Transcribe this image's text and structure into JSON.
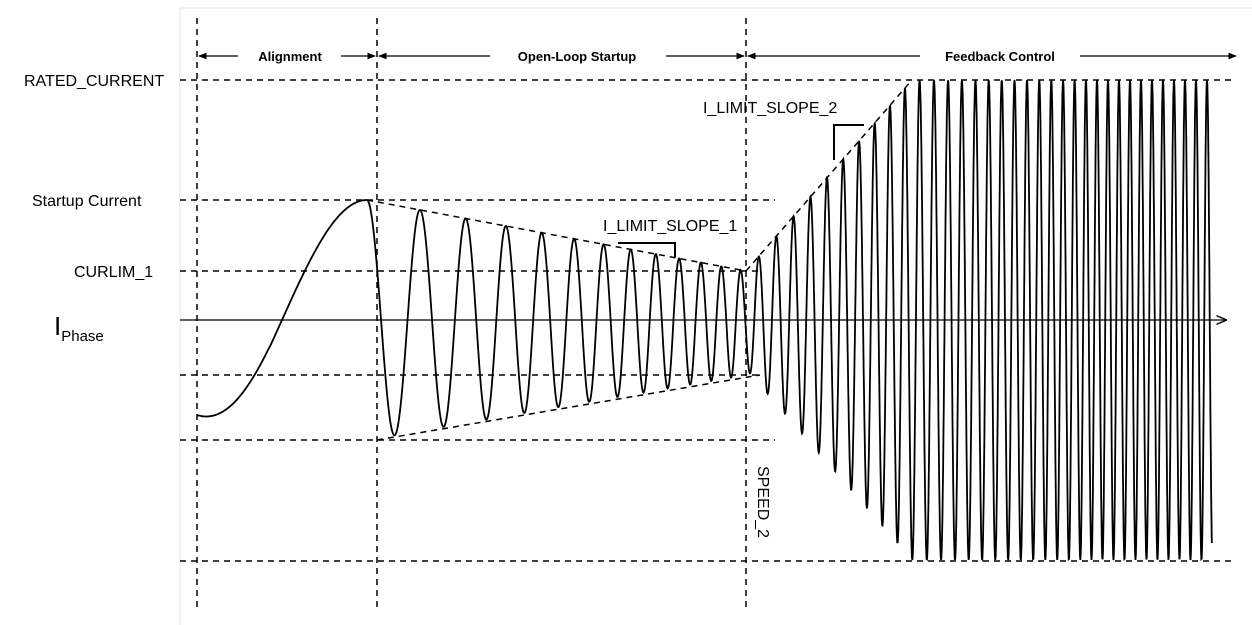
{
  "y_axis_labels": {
    "rated_current": "RATED_CURRENT",
    "startup_current": "Startup Current",
    "curlim_1": "CURLIM_1",
    "i_phase_main": "I",
    "i_phase_sub": "Phase"
  },
  "phases": {
    "alignment": "Alignment",
    "open_loop_startup": "Open-Loop Startup",
    "feedback_control": "Feedback Control"
  },
  "annotations": {
    "i_limit_slope_1": "I_LIMIT_SLOPE_1",
    "i_limit_slope_2": "I_LIMIT_SLOPE_2",
    "speed_2": "SPEED_2"
  }
}
